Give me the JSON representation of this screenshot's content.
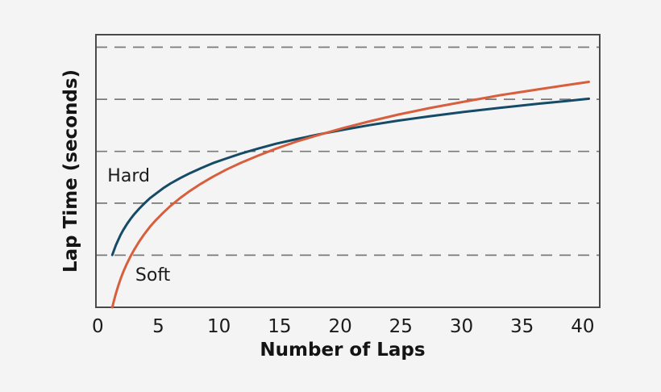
{
  "figure": {
    "background": "#f5f4f5",
    "frame_color": "#4a4a4a",
    "grid_color": "#7a7a7a",
    "text_color": "#1b1b1b"
  },
  "chart_data": {
    "type": "line",
    "title": "",
    "xlabel": "Number of Laps",
    "ylabel": "Lap Time (seconds)",
    "x_ticks": [
      0,
      5,
      10,
      15,
      20,
      25,
      30,
      35,
      40
    ],
    "y_tick_labels": [],
    "xlim": [
      -0.15,
      41.4
    ],
    "ylim": [
      0,
      100
    ],
    "y_gridlines": [
      19.1,
      38.2,
      57.2,
      76.3,
      95.4
    ],
    "grid_style": "dashed horizontal gridlines, full box frame, no y tick labels",
    "legend_position": "inline labels next to curves",
    "series": [
      {
        "name": "Hard",
        "color": "#154b66",
        "label": {
          "text": "Hard",
          "x": 0.8,
          "y": 46.2
        },
        "points": {
          "x": [
            1.2,
            1.35,
            1.5,
            1.7,
            1.9,
            2.1,
            2.4,
            2.7,
            3,
            3.4,
            3.8,
            4.3,
            4.8,
            5.4,
            6,
            6.8,
            7.6,
            8.5,
            9.5,
            10.6,
            11.8,
            13.2,
            14.7,
            16.4,
            18.2,
            20.2,
            22.4,
            24.8,
            27.4,
            30.2,
            33.2,
            36.4,
            38.5,
            40.5
          ],
          "y": [
            19.2,
            21.1,
            22.8,
            24.8,
            26.7,
            28.3,
            30.5,
            32.4,
            34.1,
            36.1,
            37.9,
            40.0,
            41.7,
            43.7,
            45.4,
            47.4,
            49.2,
            51.0,
            52.9,
            54.6,
            56.4,
            58.2,
            60.0,
            61.7,
            63.4,
            65.1,
            66.8,
            68.5,
            70.1,
            71.7,
            73.2,
            74.7,
            75.6,
            76.5
          ]
        }
      },
      {
        "name": "Soft",
        "color": "#d75f3d",
        "label": {
          "text": "Soft",
          "x": 3.1,
          "y": 9.8
        },
        "points": {
          "x": [
            1.2,
            1.35,
            1.5,
            1.7,
            1.9,
            2.1,
            2.4,
            2.7,
            3,
            3.4,
            3.8,
            4.3,
            4.8,
            5.4,
            6,
            6.8,
            7.6,
            8.5,
            9.5,
            10.6,
            11.8,
            13.2,
            14.7,
            16.4,
            18.2,
            20.2,
            22.4,
            24.8,
            27.4,
            30.2,
            33.2,
            36.4,
            38.5,
            40.5
          ],
          "y": [
            0,
            2.7,
            5.1,
            8.0,
            10.6,
            12.9,
            16.0,
            18.7,
            21.1,
            24.0,
            26.6,
            29.5,
            32.0,
            34.7,
            37.2,
            40.1,
            42.7,
            45.3,
            47.9,
            50.5,
            53.0,
            55.6,
            58.2,
            60.8,
            63.2,
            65.7,
            68.2,
            70.7,
            73.1,
            75.4,
            77.8,
            80.0,
            81.4,
            82.7
          ]
        }
      }
    ]
  }
}
